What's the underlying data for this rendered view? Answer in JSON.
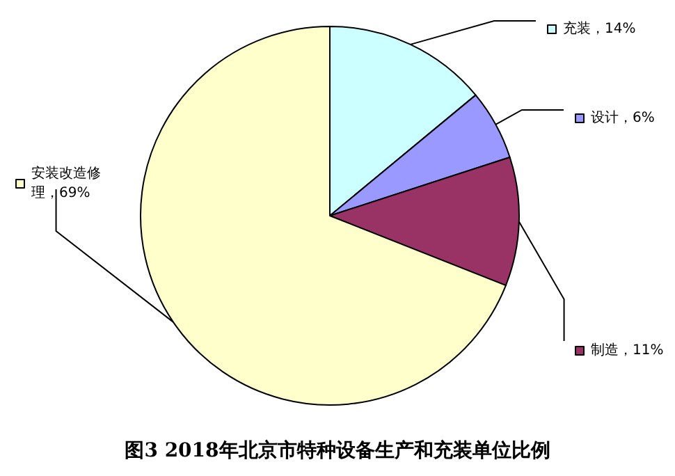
{
  "chart_data": {
    "type": "pie",
    "title": "图3 2018年北京市特种设备生产和充装单位比例",
    "categories": [
      "充装",
      "设计",
      "制造",
      "安装改造修理"
    ],
    "values": [
      14,
      6,
      11,
      69
    ],
    "value_labels": [
      "14%",
      "6%",
      "11%",
      "69%"
    ],
    "colors": [
      "#ccffff",
      "#9999ff",
      "#993366",
      "#ffffcc"
    ],
    "legend": "right"
  }
}
